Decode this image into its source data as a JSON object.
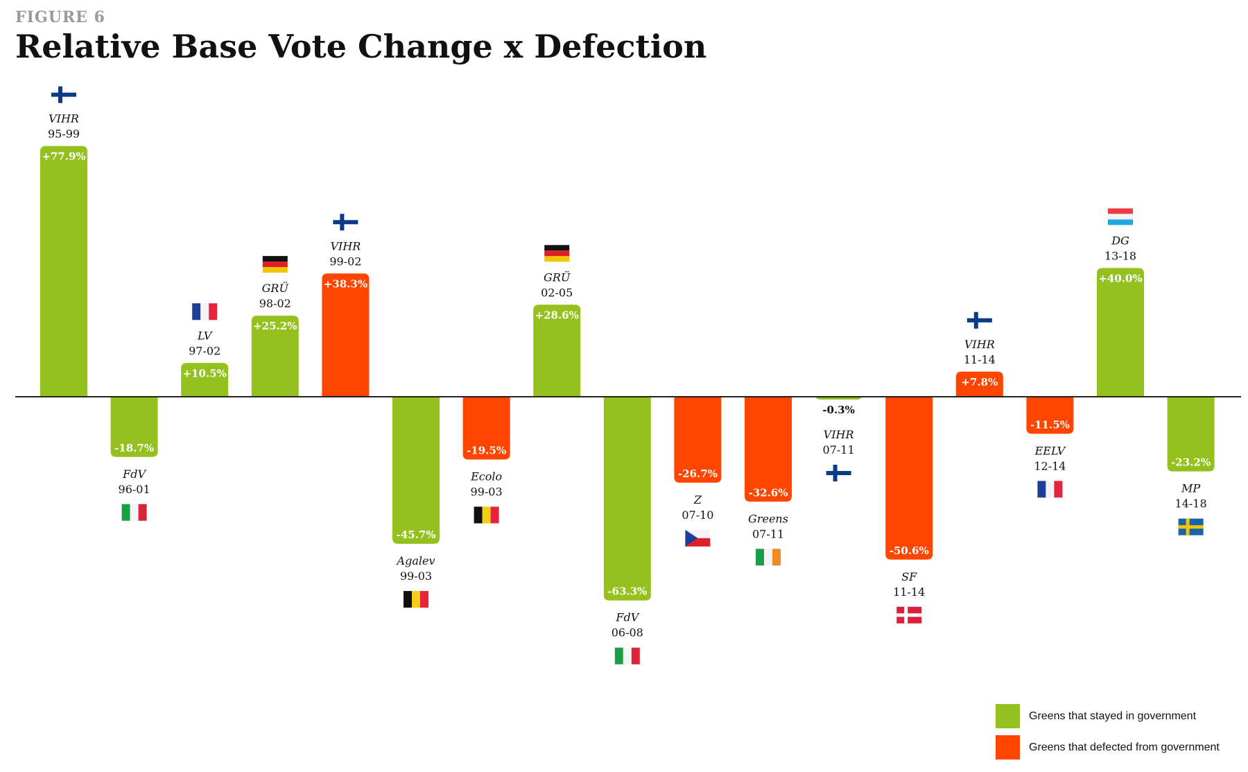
{
  "figure_label": "FIGURE 6",
  "title": "Relative Base Vote Change x Defection",
  "colors": {
    "stayed": "#95c11f",
    "defected": "#ff4500",
    "axis": "#222222"
  },
  "legend": [
    {
      "key": "stayed",
      "label": "Greens that stayed in government"
    },
    {
      "key": "defected",
      "label": "Greens that defected from government"
    }
  ],
  "chart_data": {
    "type": "bar",
    "title": "Relative Base Vote Change x Defection",
    "xlabel": "",
    "ylabel": "",
    "ylim": [
      -80,
      80
    ],
    "grid": false,
    "legend_position": "bottom-right",
    "bars": [
      {
        "party": "VIHR",
        "period": "95-99",
        "value": 77.9,
        "label": "+77.9%",
        "group": "stayed",
        "flag": "finland"
      },
      {
        "party": "FdV",
        "period": "96-01",
        "value": -18.7,
        "label": "-18.7%",
        "group": "stayed",
        "flag": "italy"
      },
      {
        "party": "LV",
        "period": "97-02",
        "value": 10.5,
        "label": "+10.5%",
        "group": "stayed",
        "flag": "france"
      },
      {
        "party": "GRÜ",
        "period": "98-02",
        "value": 25.2,
        "label": "+25.2%",
        "group": "stayed",
        "flag": "germany"
      },
      {
        "party": "VIHR",
        "period": "99-02",
        "value": 38.3,
        "label": "+38.3%",
        "group": "defected",
        "flag": "finland"
      },
      {
        "party": "Agalev",
        "period": "99-03",
        "value": -45.7,
        "label": "-45.7%",
        "group": "stayed",
        "flag": "belgium"
      },
      {
        "party": "Ecolo",
        "period": "99-03",
        "value": -19.5,
        "label": "-19.5%",
        "group": "defected",
        "flag": "belgium"
      },
      {
        "party": "GRÜ",
        "period": "02-05",
        "value": 28.6,
        "label": "+28.6%",
        "group": "stayed",
        "flag": "germany"
      },
      {
        "party": "FdV",
        "period": "06-08",
        "value": -63.3,
        "label": "-63.3%",
        "group": "stayed",
        "flag": "italy"
      },
      {
        "party": "Z",
        "period": "07-10",
        "value": -26.7,
        "label": "-26.7%",
        "group": "defected",
        "flag": "czechia"
      },
      {
        "party": "Greens",
        "period": "07-11",
        "value": -32.6,
        "label": "-32.6%",
        "group": "defected",
        "flag": "ireland"
      },
      {
        "party": "VIHR",
        "period": "07-11",
        "value": -0.3,
        "label": "-0.3%",
        "group": "stayed",
        "flag": "finland"
      },
      {
        "party": "SF",
        "period": "11-14",
        "value": -50.6,
        "label": "-50.6%",
        "group": "defected",
        "flag": "denmark"
      },
      {
        "party": "VIHR",
        "period": "11-14",
        "value": 7.8,
        "label": "+7.8%",
        "group": "defected",
        "flag": "finland"
      },
      {
        "party": "EELV",
        "period": "12-14",
        "value": -11.5,
        "label": "-11.5%",
        "group": "defected",
        "flag": "france"
      },
      {
        "party": "DG",
        "period": "13-18",
        "value": 40.0,
        "label": "+40.0%",
        "group": "stayed",
        "flag": "luxembourg"
      },
      {
        "party": "MP",
        "period": "14-18",
        "value": -23.2,
        "label": "-23.2%",
        "group": "stayed",
        "flag": "sweden"
      }
    ]
  }
}
